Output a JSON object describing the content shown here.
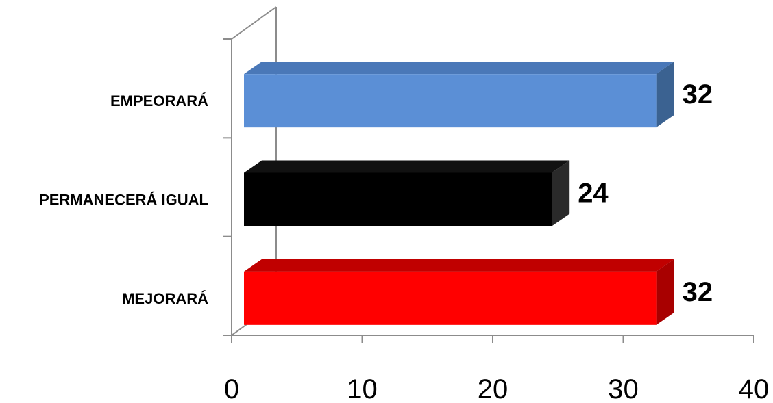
{
  "chart_data": {
    "type": "bar",
    "orientation": "horizontal",
    "style": "3d",
    "categories": [
      "EMPEORARÁ",
      "PERMANECERÁ IGUAL",
      "MEJORARÁ"
    ],
    "values": [
      32,
      24,
      32
    ],
    "value_labels": [
      "32",
      "24",
      "32"
    ],
    "colors": [
      "#5B8FD6",
      "#000000",
      "#FF0000"
    ],
    "side_colors": [
      "#3B6291",
      "#2A2A2A",
      "#A80000"
    ],
    "top_colors": [
      "#4A78B8",
      "#111111",
      "#C00000"
    ],
    "xlim": [
      0,
      40
    ],
    "x_ticks": [
      "0",
      "10",
      "20",
      "30",
      "40"
    ],
    "title": "",
    "xlabel": "",
    "ylabel": "",
    "grid": false,
    "legend": "none"
  }
}
